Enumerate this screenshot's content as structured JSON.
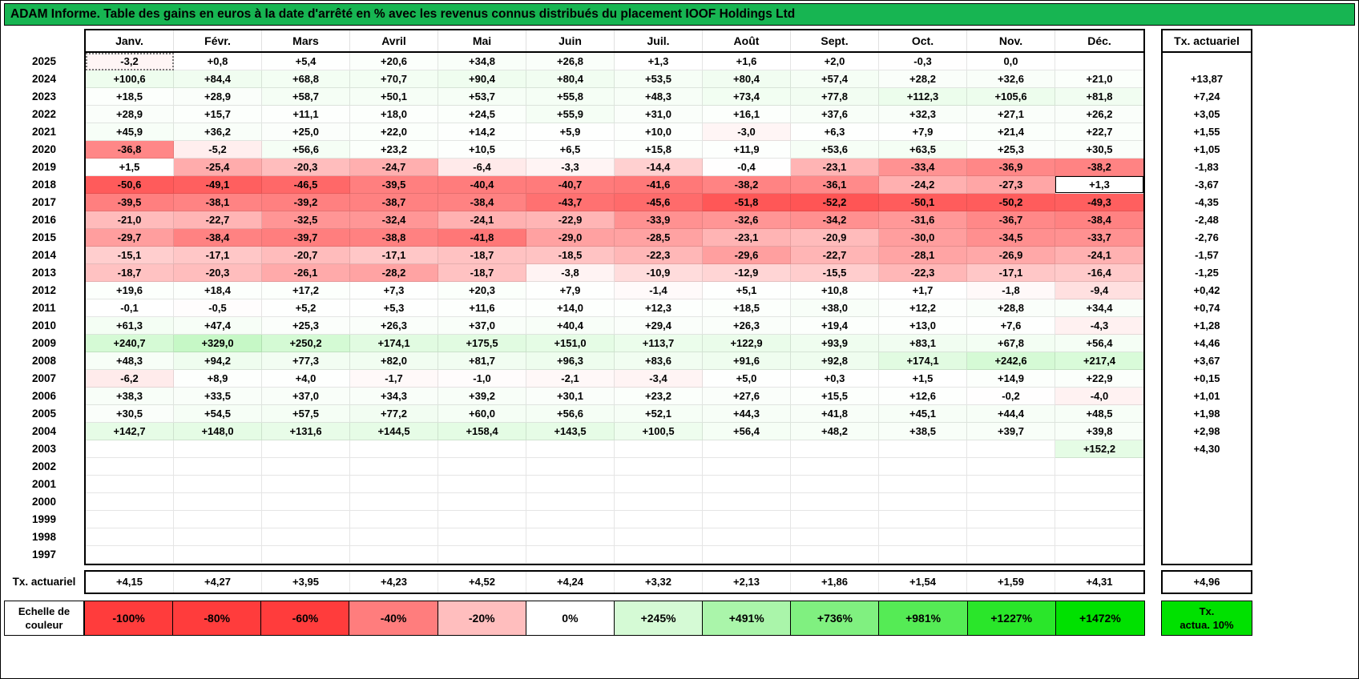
{
  "header": {
    "title": "ADAM Informe. Table des gains en euros à la date d'arrêté en % avec les revenus connus distribués du placement IOOF Holdings Ltd"
  },
  "chart_data": {
    "type": "heatmap",
    "title": "Table des gains en euros à la date d'arrêté en % avec les revenus connus distribués du placement IOOF Holdings Ltd",
    "columns": [
      "Janv.",
      "Févr.",
      "Mars",
      "Avril",
      "Mai",
      "Juin",
      "Juil.",
      "Août",
      "Sept.",
      "Oct.",
      "Nov.",
      "Déc."
    ],
    "right_column_header": "Tx. actuariel",
    "rows": [
      {
        "year": "2025",
        "values": [
          "-3,2",
          "+0,8",
          "+5,4",
          "+20,6",
          "+34,8",
          "+26,8",
          "+1,3",
          "+1,6",
          "+2,0",
          "-0,3",
          "0,0",
          ""
        ],
        "tx": ""
      },
      {
        "year": "2024",
        "values": [
          "+100,6",
          "+84,4",
          "+68,8",
          "+70,7",
          "+90,4",
          "+80,4",
          "+53,5",
          "+80,4",
          "+57,4",
          "+28,2",
          "+32,6",
          "+21,0"
        ],
        "tx": "+13,87"
      },
      {
        "year": "2023",
        "values": [
          "+18,5",
          "+28,9",
          "+58,7",
          "+50,1",
          "+53,7",
          "+55,8",
          "+48,3",
          "+73,4",
          "+77,8",
          "+112,3",
          "+105,6",
          "+81,8"
        ],
        "tx": "+7,24"
      },
      {
        "year": "2022",
        "values": [
          "+28,9",
          "+15,7",
          "+11,1",
          "+18,0",
          "+24,5",
          "+55,9",
          "+31,0",
          "+16,1",
          "+37,6",
          "+32,3",
          "+27,1",
          "+26,2"
        ],
        "tx": "+3,05"
      },
      {
        "year": "2021",
        "values": [
          "+45,9",
          "+36,2",
          "+25,0",
          "+22,0",
          "+14,2",
          "+5,9",
          "+10,0",
          "-3,0",
          "+6,3",
          "+7,9",
          "+21,4",
          "+22,7"
        ],
        "tx": "+1,55"
      },
      {
        "year": "2020",
        "values": [
          "-36,8",
          "-5,2",
          "+56,6",
          "+23,2",
          "+10,5",
          "+6,5",
          "+15,8",
          "+11,9",
          "+53,6",
          "+63,5",
          "+25,3",
          "+30,5"
        ],
        "tx": "+1,05"
      },
      {
        "year": "2019",
        "values": [
          "+1,5",
          "-25,4",
          "-20,3",
          "-24,7",
          "-6,4",
          "-3,3",
          "-14,4",
          "-0,4",
          "-23,1",
          "-33,4",
          "-36,9",
          "-38,2"
        ],
        "tx": "-1,83"
      },
      {
        "year": "2018",
        "values": [
          "-50,6",
          "-49,1",
          "-46,5",
          "-39,5",
          "-40,4",
          "-40,7",
          "-41,6",
          "-38,2",
          "-36,1",
          "-24,2",
          "-27,3",
          "+1,3"
        ],
        "tx": "-3,67"
      },
      {
        "year": "2017",
        "values": [
          "-39,5",
          "-38,1",
          "-39,2",
          "-38,7",
          "-38,4",
          "-43,7",
          "-45,6",
          "-51,8",
          "-52,2",
          "-50,1",
          "-50,2",
          "-49,3"
        ],
        "tx": "-4,35"
      },
      {
        "year": "2016",
        "values": [
          "-21,0",
          "-22,7",
          "-32,5",
          "-32,4",
          "-24,1",
          "-22,9",
          "-33,9",
          "-32,6",
          "-34,2",
          "-31,6",
          "-36,7",
          "-38,4"
        ],
        "tx": "-2,48"
      },
      {
        "year": "2015",
        "values": [
          "-29,7",
          "-38,4",
          "-39,7",
          "-38,8",
          "-41,8",
          "-29,0",
          "-28,5",
          "-23,1",
          "-20,9",
          "-30,0",
          "-34,5",
          "-33,7"
        ],
        "tx": "-2,76"
      },
      {
        "year": "2014",
        "values": [
          "-15,1",
          "-17,1",
          "-20,7",
          "-17,1",
          "-18,7",
          "-18,5",
          "-22,3",
          "-29,6",
          "-22,7",
          "-28,1",
          "-26,9",
          "-24,1"
        ],
        "tx": "-1,57"
      },
      {
        "year": "2013",
        "values": [
          "-18,7",
          "-20,3",
          "-26,1",
          "-28,2",
          "-18,7",
          "-3,8",
          "-10,9",
          "-12,9",
          "-15,5",
          "-22,3",
          "-17,1",
          "-16,4"
        ],
        "tx": "-1,25"
      },
      {
        "year": "2012",
        "values": [
          "+19,6",
          "+18,4",
          "+17,2",
          "+7,3",
          "+20,3",
          "+7,9",
          "-1,4",
          "+5,1",
          "+10,8",
          "+1,7",
          "-1,8",
          "-9,4"
        ],
        "tx": "+0,42"
      },
      {
        "year": "2011",
        "values": [
          "-0,1",
          "-0,5",
          "+5,2",
          "+5,3",
          "+11,6",
          "+14,0",
          "+12,3",
          "+18,5",
          "+38,0",
          "+12,2",
          "+28,8",
          "+34,4"
        ],
        "tx": "+0,74"
      },
      {
        "year": "2010",
        "values": [
          "+61,3",
          "+47,4",
          "+25,3",
          "+26,3",
          "+37,0",
          "+40,4",
          "+29,4",
          "+26,3",
          "+19,4",
          "+13,0",
          "+7,6",
          "-4,3"
        ],
        "tx": "+1,28"
      },
      {
        "year": "2009",
        "values": [
          "+240,7",
          "+329,0",
          "+250,2",
          "+174,1",
          "+175,5",
          "+151,0",
          "+113,7",
          "+122,9",
          "+93,9",
          "+83,1",
          "+67,8",
          "+56,4"
        ],
        "tx": "+4,46"
      },
      {
        "year": "2008",
        "values": [
          "+48,3",
          "+94,2",
          "+77,3",
          "+82,0",
          "+81,7",
          "+96,3",
          "+83,6",
          "+91,6",
          "+92,8",
          "+174,1",
          "+242,6",
          "+217,4"
        ],
        "tx": "+3,67"
      },
      {
        "year": "2007",
        "values": [
          "-6,2",
          "+8,9",
          "+4,0",
          "-1,7",
          "-1,0",
          "-2,1",
          "-3,4",
          "+5,0",
          "+0,3",
          "+1,5",
          "+14,9",
          "+22,9"
        ],
        "tx": "+0,15"
      },
      {
        "year": "2006",
        "values": [
          "+38,3",
          "+33,5",
          "+37,0",
          "+34,3",
          "+39,2",
          "+30,1",
          "+23,2",
          "+27,6",
          "+15,5",
          "+12,6",
          "-0,2",
          "-4,0"
        ],
        "tx": "+1,01"
      },
      {
        "year": "2005",
        "values": [
          "+30,5",
          "+54,5",
          "+57,5",
          "+77,2",
          "+60,0",
          "+56,6",
          "+52,1",
          "+44,3",
          "+41,8",
          "+45,1",
          "+44,4",
          "+48,5"
        ],
        "tx": "+1,98"
      },
      {
        "year": "2004",
        "values": [
          "+142,7",
          "+148,0",
          "+131,6",
          "+144,5",
          "+158,4",
          "+143,5",
          "+100,5",
          "+56,4",
          "+48,2",
          "+38,5",
          "+39,7",
          "+39,8"
        ],
        "tx": "+2,98"
      },
      {
        "year": "2003",
        "values": [
          "",
          "",
          "",
          "",
          "",
          "",
          "",
          "",
          "",
          "",
          "",
          "+152,2"
        ],
        "tx": "+4,30"
      },
      {
        "year": "2002",
        "values": [
          "",
          "",
          "",
          "",
          "",
          "",
          "",
          "",
          "",
          "",
          "",
          ""
        ],
        "tx": ""
      },
      {
        "year": "2001",
        "values": [
          "",
          "",
          "",
          "",
          "",
          "",
          "",
          "",
          "",
          "",
          "",
          ""
        ],
        "tx": ""
      },
      {
        "year": "2000",
        "values": [
          "",
          "",
          "",
          "",
          "",
          "",
          "",
          "",
          "",
          "",
          "",
          ""
        ],
        "tx": ""
      },
      {
        "year": "1999",
        "values": [
          "",
          "",
          "",
          "",
          "",
          "",
          "",
          "",
          "",
          "",
          "",
          ""
        ],
        "tx": ""
      },
      {
        "year": "1998",
        "values": [
          "",
          "",
          "",
          "",
          "",
          "",
          "",
          "",
          "",
          "",
          "",
          ""
        ],
        "tx": ""
      },
      {
        "year": "1997",
        "values": [
          "",
          "",
          "",
          "",
          "",
          "",
          "",
          "",
          "",
          "",
          "",
          ""
        ],
        "tx": ""
      }
    ],
    "footer": {
      "label": "Tx. actuariel",
      "values": [
        "+4,15",
        "+4,27",
        "+3,95",
        "+4,23",
        "+4,52",
        "+4,24",
        "+3,32",
        "+2,13",
        "+1,86",
        "+1,54",
        "+1,59",
        "+4,31"
      ],
      "tx": "+4,96"
    },
    "active_cell": {
      "year": "2025",
      "col": 0
    },
    "outlined_cell": {
      "year": "2018",
      "col": 11
    },
    "color_scale": {
      "negative_full_at": -60,
      "positive_full_at": 1472,
      "stops": [
        {
          "label": "-100%",
          "value": -100
        },
        {
          "label": "-80%",
          "value": -80
        },
        {
          "label": "-60%",
          "value": -60
        },
        {
          "label": "-40%",
          "value": -40
        },
        {
          "label": "-20%",
          "value": -20
        },
        {
          "label": "0%",
          "value": 0
        },
        {
          "label": "+245%",
          "value": 245
        },
        {
          "label": "+491%",
          "value": 491
        },
        {
          "label": "+736%",
          "value": 736
        },
        {
          "label": "+981%",
          "value": 981
        },
        {
          "label": "+1227%",
          "value": 1227
        },
        {
          "label": "+1472%",
          "value": 1472
        }
      ]
    }
  },
  "legend": {
    "label_line1": "Echelle de",
    "label_line2": "couleur",
    "right_line1": "Tx.",
    "right_line2": "actua. 10%"
  },
  "colors": {
    "title_bg": "#17B552",
    "negative_full": "#FF3C3C",
    "positive_full": "#00E100"
  }
}
